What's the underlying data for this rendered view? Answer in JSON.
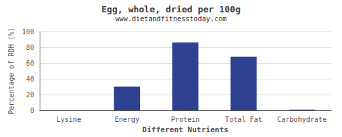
{
  "chart_data": {
    "type": "bar",
    "title": "Egg, whole, dried per 100g",
    "subtitle": "www.dietandfitnesstoday.com",
    "xlabel": "Different Nutrients",
    "ylabel": "Percentage of RDH (%)",
    "categories": [
      "Lysine",
      "Energy",
      "Protein",
      "Total Fat",
      "Carbohydrate"
    ],
    "values": [
      0,
      30,
      86,
      68,
      1
    ],
    "color": "#2e4190",
    "ylim": [
      0,
      100
    ],
    "yticks": [
      0,
      20,
      40,
      60,
      80,
      100
    ],
    "grid": true
  }
}
